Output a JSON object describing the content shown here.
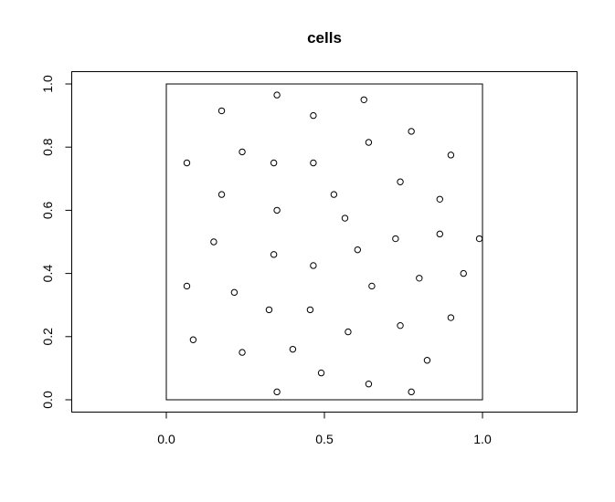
{
  "chart_data": {
    "type": "scatter",
    "title": "cells",
    "xlabel": "",
    "ylabel": "",
    "x_ticks": [
      0.0,
      0.5,
      1.0
    ],
    "x_tick_labels": [
      "0.0",
      "0.5",
      "1.0"
    ],
    "y_ticks": [
      0.0,
      0.2,
      0.4,
      0.6,
      0.8,
      1.0
    ],
    "y_tick_labels": [
      "0.0",
      "0.2",
      "0.4",
      "0.6",
      "0.8",
      "1.0"
    ],
    "xlim": [
      -0.3,
      1.3
    ],
    "ylim": [
      -0.04,
      1.04
    ],
    "window": [
      [
        0,
        0
      ],
      [
        1,
        1
      ]
    ],
    "grid": false,
    "marker": "open-circle",
    "points": [
      [
        0.35,
        0.965
      ],
      [
        0.625,
        0.95
      ],
      [
        0.175,
        0.915
      ],
      [
        0.465,
        0.9
      ],
      [
        0.775,
        0.85
      ],
      [
        0.64,
        0.815
      ],
      [
        0.24,
        0.785
      ],
      [
        0.9,
        0.775
      ],
      [
        0.065,
        0.75
      ],
      [
        0.34,
        0.75
      ],
      [
        0.465,
        0.75
      ],
      [
        0.74,
        0.69
      ],
      [
        0.175,
        0.65
      ],
      [
        0.53,
        0.65
      ],
      [
        0.865,
        0.635
      ],
      [
        0.35,
        0.6
      ],
      [
        0.565,
        0.575
      ],
      [
        0.865,
        0.525
      ],
      [
        0.15,
        0.5
      ],
      [
        0.725,
        0.51
      ],
      [
        0.99,
        0.51
      ],
      [
        0.605,
        0.475
      ],
      [
        0.34,
        0.46
      ],
      [
        0.465,
        0.425
      ],
      [
        0.94,
        0.4
      ],
      [
        0.8,
        0.385
      ],
      [
        0.065,
        0.36
      ],
      [
        0.65,
        0.36
      ],
      [
        0.215,
        0.34
      ],
      [
        0.325,
        0.285
      ],
      [
        0.455,
        0.285
      ],
      [
        0.9,
        0.26
      ],
      [
        0.74,
        0.235
      ],
      [
        0.575,
        0.215
      ],
      [
        0.085,
        0.19
      ],
      [
        0.4,
        0.16
      ],
      [
        0.24,
        0.15
      ],
      [
        0.825,
        0.125
      ],
      [
        0.49,
        0.085
      ],
      [
        0.64,
        0.05
      ],
      [
        0.35,
        0.025
      ],
      [
        0.775,
        0.025
      ]
    ]
  }
}
